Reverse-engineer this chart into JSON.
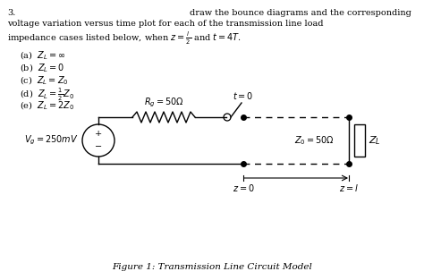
{
  "title": "Figure 1: Transmission Line Circuit Model",
  "problem_number": "3.",
  "problem_text_line1": "draw the bounce diagrams and the corresponding",
  "problem_text_line2": "voltage variation versus time plot for each of the transmission line load",
  "problem_text_line3": "impedance cases listed below, when $z = \\frac{l}{2}$ and $t = 4T$.",
  "cases": [
    "(a)  $Z_L = \\infty$",
    "(b)  $Z_L = 0$",
    "(c)  $Z_L = Z_0$",
    "(d)  $Z_L = \\frac{1}{2}Z_0$",
    "(e)  $Z_L = 2Z_0$"
  ],
  "circuit_labels": {
    "Rg": "$R_g = 50\\Omega$",
    "t0": "$t = 0$",
    "Vg": "$V_g = 250mV$",
    "Z0": "$Z_0 = 50\\Omega$",
    "ZL": "$Z_L$",
    "z0": "$z = 0$",
    "zl": "$z = l$"
  },
  "background_color": "#ffffff",
  "text_color": "#000000"
}
